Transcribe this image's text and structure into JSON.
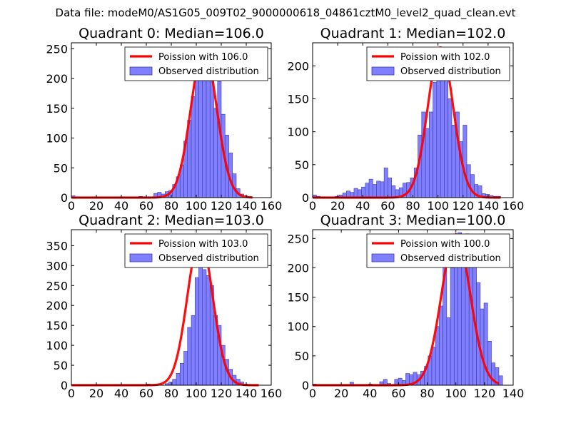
{
  "figure": {
    "suptitle": "Data file: modeM0/AS1G05_009T02_9000000618_04861cztM0_level2_quad_clean.evt",
    "colors": {
      "hist_fill": "#7f7fff",
      "hist_edge": "#3a3aa8",
      "curve": "#ff0000",
      "axes": "#000000"
    }
  },
  "chart_data": [
    {
      "type": "bar",
      "title": "Quadrant 0: Median=106.0",
      "xlim": [
        0,
        160
      ],
      "ylim": [
        0,
        260
      ],
      "xticks": [
        0,
        20,
        40,
        60,
        80,
        100,
        120,
        140,
        160
      ],
      "yticks": [
        0,
        50,
        100,
        150,
        200,
        250
      ],
      "legend": [
        "Poission with 106.0",
        "Observed distribution"
      ],
      "legend_position": "top-right",
      "bin_width": 3,
      "bins_x": [
        0,
        54,
        66,
        69,
        72,
        75,
        78,
        81,
        84,
        87,
        90,
        93,
        96,
        99,
        102,
        105,
        108,
        111,
        114,
        117,
        120,
        123,
        126,
        129,
        132,
        135,
        138,
        141
      ],
      "bins_y": [
        3,
        2,
        7,
        9,
        6,
        10,
        12,
        22,
        35,
        55,
        95,
        130,
        170,
        205,
        240,
        215,
        200,
        210,
        150,
        195,
        140,
        105,
        75,
        40,
        15,
        6,
        3,
        2
      ],
      "curve_mean": 106,
      "curve_scale": 250,
      "curve_x": [
        0,
        145
      ]
    },
    {
      "type": "bar",
      "title": "Quadrant 1: Median=102.0",
      "xlim": [
        0,
        160
      ],
      "ylim": [
        0,
        235
      ],
      "xticks": [
        0,
        20,
        40,
        60,
        80,
        100,
        120,
        140,
        160
      ],
      "yticks": [
        0,
        50,
        100,
        150,
        200
      ],
      "legend": [
        "Poission with 102.0",
        "Observed distribution"
      ],
      "legend_position": "top-right",
      "bin_width": 3,
      "bins_x": [
        0,
        3,
        18,
        21,
        24,
        27,
        30,
        33,
        36,
        39,
        42,
        45,
        48,
        51,
        54,
        57,
        60,
        63,
        66,
        69,
        72,
        75,
        78,
        81,
        84,
        87,
        90,
        93,
        96,
        99,
        102,
        105,
        108,
        111,
        114,
        117,
        120,
        123,
        126,
        129,
        132,
        135,
        138,
        141,
        144,
        147
      ],
      "bins_y": [
        4,
        2,
        2,
        4,
        7,
        10,
        8,
        14,
        12,
        16,
        22,
        28,
        20,
        25,
        24,
        45,
        30,
        18,
        12,
        15,
        22,
        23,
        30,
        45,
        95,
        130,
        105,
        130,
        175,
        208,
        225,
        180,
        150,
        110,
        130,
        85,
        110,
        50,
        35,
        20,
        18,
        6,
        5,
        3,
        2,
        2
      ],
      "curve_mean": 102,
      "curve_scale": 228,
      "curve_x": [
        0,
        150
      ]
    },
    {
      "type": "bar",
      "title": "Quadrant 2: Median=103.0",
      "xlim": [
        0,
        160
      ],
      "ylim": [
        0,
        390
      ],
      "xticks": [
        0,
        20,
        40,
        60,
        80,
        100,
        120,
        140,
        160
      ],
      "yticks": [
        0,
        50,
        100,
        150,
        200,
        250,
        300,
        350
      ],
      "legend": [
        "Poission with 103.0",
        "Observed distribution"
      ],
      "legend_position": "top-right",
      "bin_width": 3,
      "bins_x": [
        0,
        60,
        75,
        78,
        81,
        84,
        87,
        90,
        93,
        96,
        99,
        102,
        105,
        108,
        111,
        114,
        117,
        120,
        123,
        126,
        129,
        132,
        135,
        138
      ],
      "bins_y": [
        2,
        3,
        4,
        8,
        15,
        30,
        55,
        85,
        145,
        175,
        270,
        340,
        290,
        275,
        250,
        175,
        150,
        100,
        65,
        40,
        25,
        15,
        8,
        3
      ],
      "curve_mean": 103,
      "curve_scale": 368,
      "curve_x": [
        0,
        150
      ]
    },
    {
      "type": "bar",
      "title": "Quadrant 3: Median=100.0",
      "xlim": [
        0,
        140
      ],
      "ylim": [
        0,
        265
      ],
      "xticks": [
        0,
        20,
        40,
        60,
        80,
        100,
        120,
        140
      ],
      "yticks": [
        0,
        50,
        100,
        150,
        200,
        250
      ],
      "legend": [
        "Poission with 100.0",
        "Observed distribution"
      ],
      "legend_position": "top-right",
      "bin_width": 2.6,
      "bins_x": [
        0,
        26,
        39,
        46.8,
        49.4,
        52,
        57.2,
        59.8,
        62.4,
        65,
        67.6,
        70.2,
        72.8,
        75.4,
        78,
        80.6,
        83.2,
        85.8,
        88.4,
        91,
        93.6,
        96.2,
        98.8,
        101.4,
        104,
        106.6,
        109.2,
        111.8,
        114.4,
        117,
        119.6,
        122.2,
        124.8,
        127.4,
        130
      ],
      "bins_y": [
        2,
        5,
        2,
        6,
        10,
        3,
        10,
        12,
        8,
        20,
        18,
        22,
        18,
        24,
        32,
        50,
        65,
        100,
        135,
        205,
        115,
        200,
        210,
        260,
        225,
        258,
        230,
        210,
        175,
        130,
        140,
        75,
        38,
        30,
        16
      ],
      "curve_mean": 100,
      "curve_scale": 257,
      "curve_x": [
        0,
        130
      ]
    }
  ]
}
